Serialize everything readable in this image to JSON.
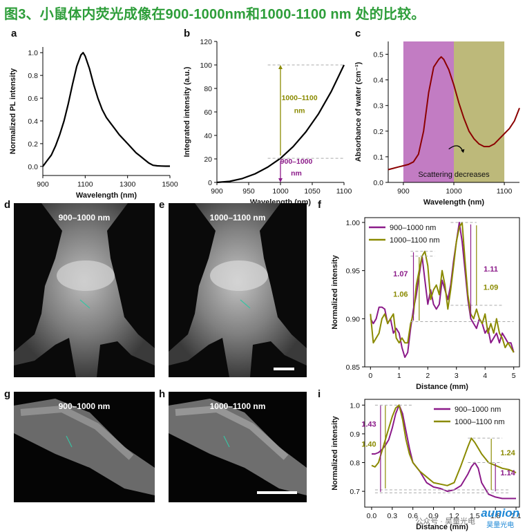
{
  "figure": {
    "title": "图3、小鼠体内荧光成像在900-1000nm和1000-1100 nm 处的比较。"
  },
  "panel_labels": {
    "a": "a",
    "b": "b",
    "c": "c",
    "d": "d",
    "e": "e",
    "f": "f",
    "g": "g",
    "h": "h",
    "i": "i"
  },
  "images": {
    "d": {
      "caption": "900–1000 nm"
    },
    "e": {
      "caption": "1000–1100 nm"
    },
    "g": {
      "caption": "900–1000 nm"
    },
    "h": {
      "caption": "1000–1100 nm"
    }
  },
  "watermark": {
    "source": "公众号 · 昊量光电",
    "logo": "aunion",
    "sub": "昊量光电"
  },
  "chart_data": [
    {
      "id": "a",
      "type": "line",
      "xlabel": "Wavelength (nm)",
      "ylabel": "Normalized PL intensity",
      "xlim": [
        900,
        1500
      ],
      "ylim": [
        -0.08,
        1.05
      ],
      "xticks": [
        900,
        1100,
        1300,
        1500
      ],
      "yticks": [
        0.0,
        0.2,
        0.4,
        0.6,
        0.8,
        1.0
      ],
      "ytick_labels": [
        "0.0",
        "0.2",
        "0.4",
        "0.6",
        "0.8",
        "1.0"
      ],
      "series": [
        {
          "color": "#000000",
          "x": [
            900,
            920,
            940,
            960,
            980,
            1000,
            1020,
            1040,
            1060,
            1080,
            1090,
            1100,
            1120,
            1140,
            1160,
            1180,
            1200,
            1220,
            1240,
            1260,
            1280,
            1300,
            1320,
            1340,
            1360,
            1380,
            1400,
            1420,
            1440,
            1460,
            1480,
            1500
          ],
          "y": [
            0.0,
            0.05,
            0.1,
            0.18,
            0.28,
            0.4,
            0.55,
            0.72,
            0.88,
            0.98,
            1.0,
            0.97,
            0.86,
            0.72,
            0.6,
            0.5,
            0.43,
            0.38,
            0.33,
            0.28,
            0.24,
            0.2,
            0.16,
            0.12,
            0.09,
            0.06,
            0.03,
            0.01,
            0.005,
            0.003,
            0.002,
            0.002
          ]
        }
      ]
    },
    {
      "id": "b",
      "type": "line",
      "xlabel": "Wavelength (nm)",
      "ylabel": "Integrated intensity (a.u.)",
      "xlim": [
        900,
        1100
      ],
      "ylim": [
        0,
        120
      ],
      "xticks": [
        900,
        950,
        1000,
        1050,
        1100
      ],
      "yticks": [
        0,
        20,
        40,
        60,
        80,
        100,
        120
      ],
      "ytick_labels": [
        "0",
        "20",
        "40",
        "60",
        "80",
        "100",
        "120"
      ],
      "series": [
        {
          "color": "#000000",
          "x": [
            900,
            920,
            940,
            960,
            980,
            1000,
            1020,
            1040,
            1060,
            1080,
            1100
          ],
          "y": [
            0,
            0.9,
            3.3,
            7.3,
            13.0,
            20.5,
            30.5,
            43.0,
            58.5,
            77.5,
            100
          ]
        }
      ],
      "annotations": [
        {
          "text": "1000–1100\nnm",
          "color": "#8a8a00",
          "from": 20.5,
          "to": 100,
          "x": 1000
        },
        {
          "text": "900–1000\nnm",
          "color": "#8b1a89",
          "from": 0,
          "to": 20.5,
          "x": 1000
        }
      ]
    },
    {
      "id": "c",
      "type": "line",
      "xlabel": "Wavelength (nm)",
      "ylabel": "Absorbance of water (cm⁻¹)",
      "xlim": [
        870,
        1130
      ],
      "ylim": [
        0,
        0.55
      ],
      "xticks": [
        900,
        1000,
        1100
      ],
      "yticks": [
        0.0,
        0.1,
        0.2,
        0.3,
        0.4,
        0.5
      ],
      "ytick_labels": [
        "0.0",
        "0.1",
        "0.2",
        "0.3",
        "0.4",
        "0.5"
      ],
      "bands": [
        {
          "from": 900,
          "to": 1000,
          "color": "#c27cc3"
        },
        {
          "from": 1000,
          "to": 1100,
          "color": "#bdb97a"
        }
      ],
      "band_label": "Scattering decreases",
      "series": [
        {
          "color": "#8b0000",
          "x": [
            870,
            880,
            890,
            900,
            910,
            920,
            930,
            940,
            950,
            960,
            970,
            975,
            980,
            990,
            1000,
            1010,
            1020,
            1030,
            1040,
            1050,
            1060,
            1070,
            1080,
            1090,
            1100,
            1110,
            1120,
            1130
          ],
          "y": [
            0.05,
            0.055,
            0.06,
            0.065,
            0.07,
            0.08,
            0.11,
            0.2,
            0.35,
            0.45,
            0.48,
            0.49,
            0.48,
            0.44,
            0.38,
            0.31,
            0.25,
            0.2,
            0.17,
            0.15,
            0.14,
            0.14,
            0.15,
            0.17,
            0.19,
            0.21,
            0.24,
            0.29
          ]
        }
      ]
    },
    {
      "id": "f",
      "type": "line",
      "xlabel": "Distance (mm)",
      "ylabel": "Normalized intensity",
      "xlim": [
        -0.2,
        5.2
      ],
      "ylim": [
        0.85,
        1.005
      ],
      "xticks": [
        0,
        1,
        2,
        3,
        4,
        5
      ],
      "yticks": [
        0.85,
        0.9,
        0.95,
        1.0
      ],
      "ytick_labels": [
        "0.85",
        "0.90",
        "0.95",
        "1.00"
      ],
      "legend": "top-left",
      "series": [
        {
          "name": "900–1000 nm",
          "color": "#8b1a89",
          "x": [
            0,
            0.1,
            0.2,
            0.3,
            0.4,
            0.5,
            0.6,
            0.7,
            0.8,
            0.9,
            1.0,
            1.1,
            1.2,
            1.3,
            1.4,
            1.5,
            1.6,
            1.7,
            1.8,
            1.9,
            2.0,
            2.1,
            2.2,
            2.3,
            2.4,
            2.5,
            2.6,
            2.7,
            2.8,
            2.9,
            3.0,
            3.1,
            3.2,
            3.3,
            3.4,
            3.5,
            3.6,
            3.7,
            3.8,
            3.9,
            4.0,
            4.1,
            4.2,
            4.3,
            4.4,
            4.5,
            4.6,
            4.7,
            4.8,
            4.9,
            5.0
          ],
          "y": [
            0.9,
            0.895,
            0.9,
            0.912,
            0.912,
            0.91,
            0.895,
            0.9,
            0.885,
            0.89,
            0.885,
            0.87,
            0.86,
            0.865,
            0.89,
            0.91,
            0.925,
            0.945,
            0.965,
            0.94,
            0.915,
            0.93,
            0.915,
            0.91,
            0.915,
            0.94,
            0.93,
            0.92,
            0.935,
            0.96,
            0.98,
            1.0,
            0.98,
            0.95,
            0.92,
            0.9,
            0.895,
            0.89,
            0.9,
            0.895,
            0.885,
            0.89,
            0.875,
            0.88,
            0.885,
            0.875,
            0.885,
            0.88,
            0.875,
            0.875,
            0.865
          ]
        },
        {
          "name": "1000–1100 nm",
          "color": "#8a8a00",
          "x": [
            0,
            0.1,
            0.2,
            0.3,
            0.4,
            0.5,
            0.6,
            0.7,
            0.8,
            0.9,
            1.0,
            1.1,
            1.2,
            1.3,
            1.4,
            1.5,
            1.6,
            1.7,
            1.8,
            1.9,
            2.0,
            2.1,
            2.2,
            2.3,
            2.4,
            2.5,
            2.6,
            2.7,
            2.8,
            2.9,
            3.0,
            3.1,
            3.2,
            3.3,
            3.4,
            3.5,
            3.6,
            3.7,
            3.8,
            3.9,
            4.0,
            4.1,
            4.2,
            4.3,
            4.4,
            4.5,
            4.6,
            4.7,
            4.8,
            4.9,
            5.0
          ],
          "y": [
            0.905,
            0.875,
            0.88,
            0.885,
            0.9,
            0.905,
            0.895,
            0.9,
            0.905,
            0.88,
            0.875,
            0.88,
            0.875,
            0.875,
            0.895,
            0.905,
            0.935,
            0.95,
            0.965,
            0.97,
            0.955,
            0.92,
            0.93,
            0.935,
            0.925,
            0.95,
            0.935,
            0.91,
            0.93,
            0.955,
            0.98,
            0.995,
            1.0,
            0.96,
            0.925,
            0.905,
            0.9,
            0.91,
            0.9,
            0.895,
            0.905,
            0.885,
            0.895,
            0.885,
            0.9,
            0.885,
            0.88,
            0.87,
            0.875,
            0.87,
            0.865
          ]
        }
      ],
      "ratio_labels": [
        {
          "text": "1.07",
          "color": "#8b1a89"
        },
        {
          "text": "1.06",
          "color": "#8a8a00"
        },
        {
          "text": "1.11",
          "color": "#8b1a89"
        },
        {
          "text": "1.09",
          "color": "#8a8a00"
        }
      ]
    },
    {
      "id": "i",
      "type": "line",
      "xlabel": "Distance (mm)",
      "ylabel": "Normalized intensity",
      "xlim": [
        -0.1,
        2.15
      ],
      "ylim": [
        0.645,
        1.02
      ],
      "xticks": [
        0.0,
        0.3,
        0.6,
        0.9,
        1.2,
        1.5,
        1.8,
        2.1
      ],
      "xtick_labels": [
        "0.0",
        "0.3",
        "0.6",
        "0.9",
        "1.2",
        "1.5",
        "1.8",
        "2.1"
      ],
      "yticks": [
        0.7,
        0.8,
        0.9,
        1.0
      ],
      "ytick_labels": [
        "0.7",
        "0.8",
        "0.9",
        "1.0"
      ],
      "legend": "top-right",
      "series": [
        {
          "name": "900–1000 nm",
          "color": "#8b1a89",
          "x": [
            0.0,
            0.05,
            0.1,
            0.15,
            0.2,
            0.25,
            0.3,
            0.35,
            0.4,
            0.45,
            0.5,
            0.55,
            0.6,
            0.7,
            0.8,
            0.9,
            1.0,
            1.1,
            1.2,
            1.3,
            1.4,
            1.45,
            1.5,
            1.55,
            1.6,
            1.7,
            1.8,
            1.9,
            2.0,
            2.1
          ],
          "y": [
            0.83,
            0.83,
            0.835,
            0.845,
            0.86,
            0.88,
            0.92,
            0.97,
            1.0,
            0.97,
            0.91,
            0.85,
            0.8,
            0.77,
            0.73,
            0.715,
            0.71,
            0.7,
            0.705,
            0.72,
            0.76,
            0.785,
            0.8,
            0.78,
            0.73,
            0.69,
            0.68,
            0.675,
            0.675,
            0.675
          ]
        },
        {
          "name": "1000–1100 nm",
          "color": "#8a8a00",
          "x": [
            0.0,
            0.05,
            0.1,
            0.15,
            0.2,
            0.25,
            0.3,
            0.35,
            0.4,
            0.45,
            0.5,
            0.55,
            0.6,
            0.7,
            0.8,
            0.9,
            1.0,
            1.1,
            1.2,
            1.3,
            1.4,
            1.45,
            1.5,
            1.55,
            1.6,
            1.7,
            1.8,
            1.9,
            2.0,
            2.1
          ],
          "y": [
            0.79,
            0.785,
            0.8,
            0.84,
            0.88,
            0.92,
            0.96,
            0.99,
            1.0,
            0.95,
            0.88,
            0.83,
            0.8,
            0.77,
            0.75,
            0.73,
            0.725,
            0.72,
            0.73,
            0.79,
            0.855,
            0.885,
            0.87,
            0.85,
            0.83,
            0.8,
            0.79,
            0.78,
            0.775,
            0.765
          ]
        }
      ],
      "ratio_labels": [
        {
          "text": "1.43",
          "color": "#8b1a89"
        },
        {
          "text": "1.40",
          "color": "#8a8a00"
        },
        {
          "text": "1.24",
          "color": "#8a8a00"
        },
        {
          "text": "1.14",
          "color": "#8b1a89"
        }
      ]
    }
  ]
}
